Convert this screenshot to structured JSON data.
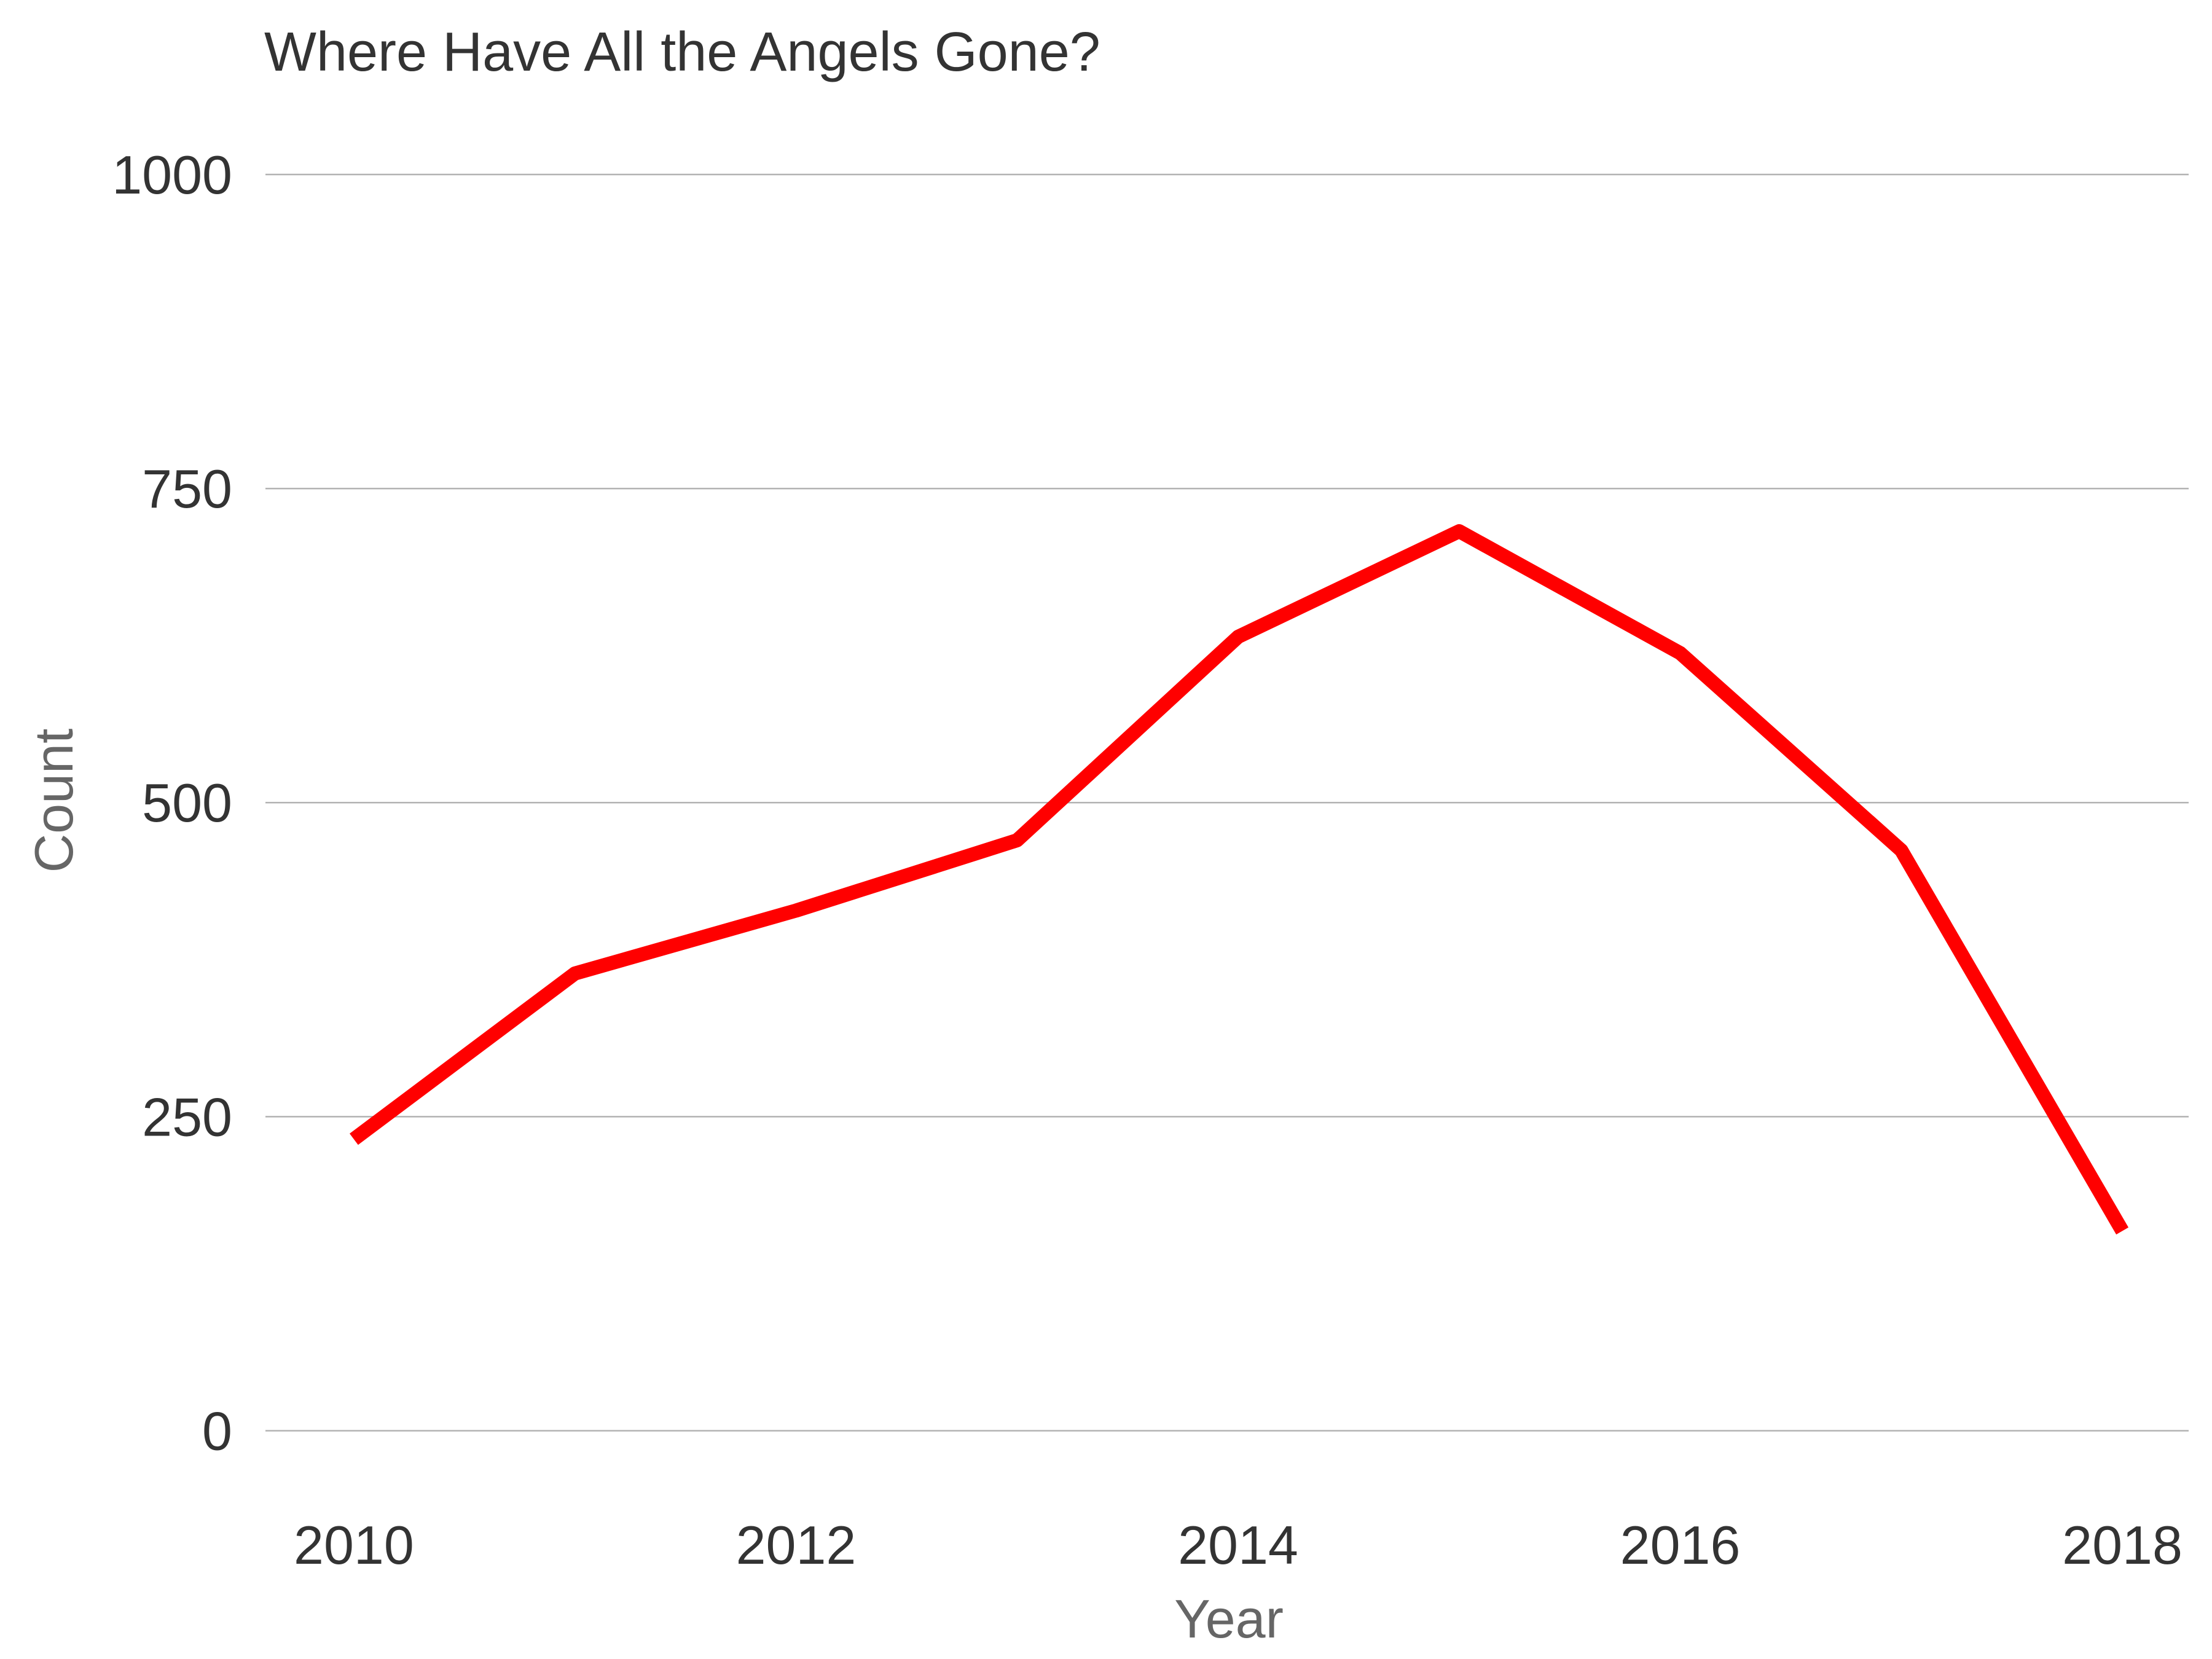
{
  "chart_data": {
    "type": "line",
    "title": "Where Have All the Angels Gone?",
    "xlabel": "Year",
    "ylabel": "Count",
    "x": [
      2010,
      2011,
      2012,
      2013,
      2014,
      2015,
      2016,
      2017,
      2018
    ],
    "series": [
      {
        "values": [
          232,
          364,
          414,
          470,
          632,
          716,
          619,
          462,
          159
        ],
        "color": "#ff0000"
      }
    ],
    "xlim": [
      2009.6,
      2018.3
    ],
    "ylim": [
      -35,
      1000
    ],
    "x_ticks": [
      2010,
      2012,
      2014,
      2016,
      2018
    ],
    "y_ticks": [
      0,
      250,
      500,
      750,
      1000
    ],
    "grid": {
      "horizontal": true,
      "vertical": false
    },
    "legend": "none"
  }
}
